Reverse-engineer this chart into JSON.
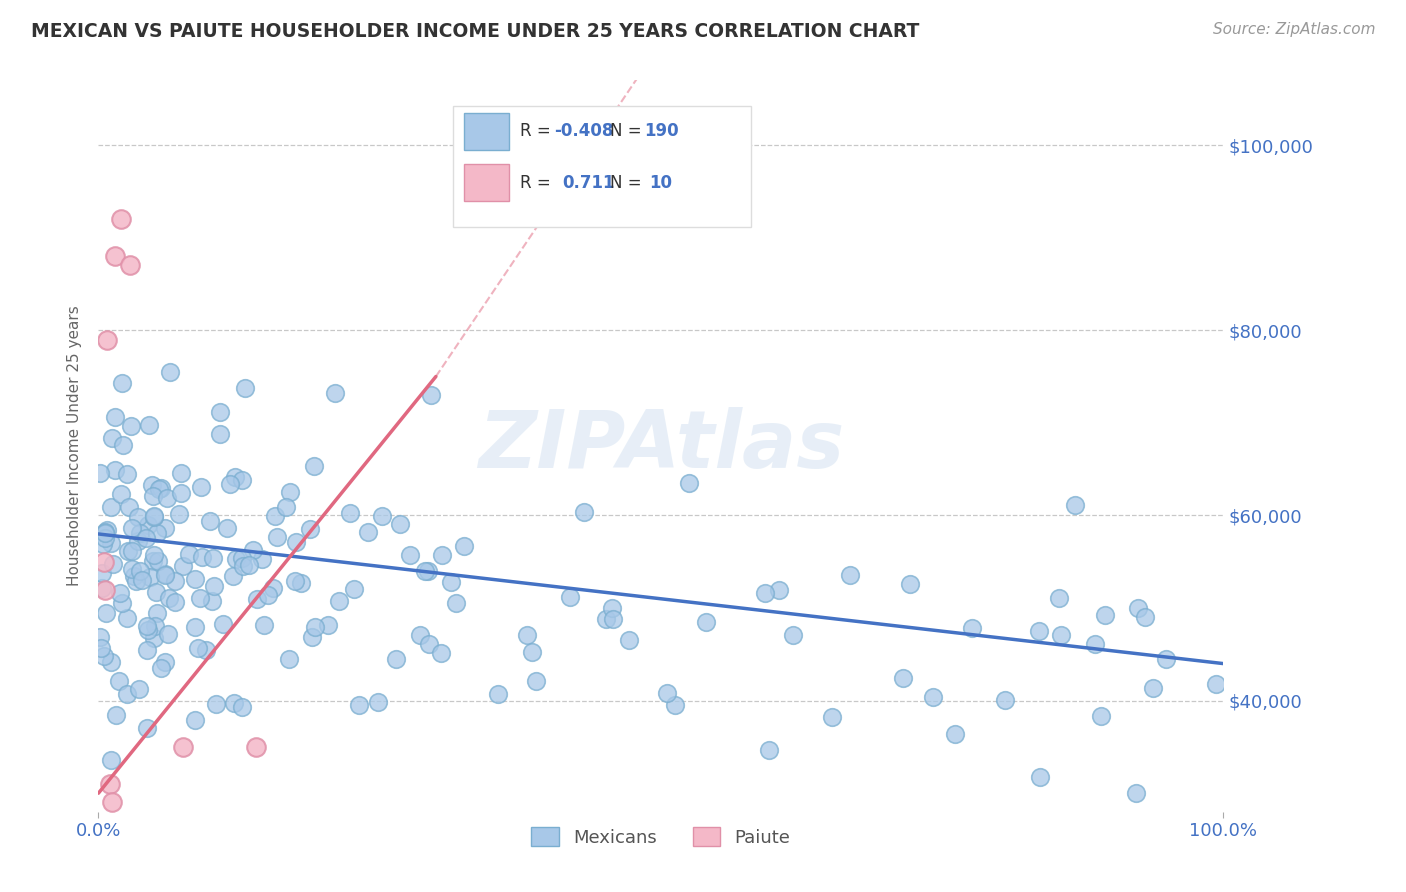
{
  "title": "MEXICAN VS PAIUTE HOUSEHOLDER INCOME UNDER 25 YEARS CORRELATION CHART",
  "source_text": "Source: ZipAtlas.com",
  "ylabel": "Householder Income Under 25 years",
  "watermark": "ZIPAtlas",
  "xlim": [
    0.0,
    100.0
  ],
  "ylim": [
    28000,
    107000
  ],
  "yticks": [
    40000,
    60000,
    80000,
    100000
  ],
  "ytick_labels": [
    "$40,000",
    "$60,000",
    "$80,000",
    "$100,000"
  ],
  "xtick_labels": [
    "0.0%",
    "100.0%"
  ],
  "legend_r_mexican": "-0.408",
  "legend_n_mexican": "190",
  "legend_r_paiute": "0.711",
  "legend_n_paiute": "10",
  "mexican_color": "#a8c8e8",
  "mexican_edge_color": "#7aaed0",
  "mexican_line_color": "#4472c4",
  "paiute_color": "#f4b8c8",
  "paiute_edge_color": "#e090a8",
  "paiute_line_color": "#e06880",
  "title_color": "#333333",
  "axis_label_color": "#4472c4",
  "background_color": "#ffffff",
  "grid_color": "#c8c8c8",
  "mexican_trend_x": [
    0.0,
    100.0
  ],
  "mexican_trend_y": [
    58000,
    44000
  ],
  "paiute_trend_x": [
    0.0,
    30.0
  ],
  "paiute_trend_y": [
    30000,
    75000
  ],
  "paiute_x": [
    0.8,
    1.5,
    2.0,
    2.8,
    7.5,
    14.0,
    0.5,
    0.6,
    1.0,
    1.2
  ],
  "paiute_y": [
    79000,
    88000,
    92000,
    87000,
    35000,
    35000,
    55000,
    52000,
    31000,
    29000
  ]
}
